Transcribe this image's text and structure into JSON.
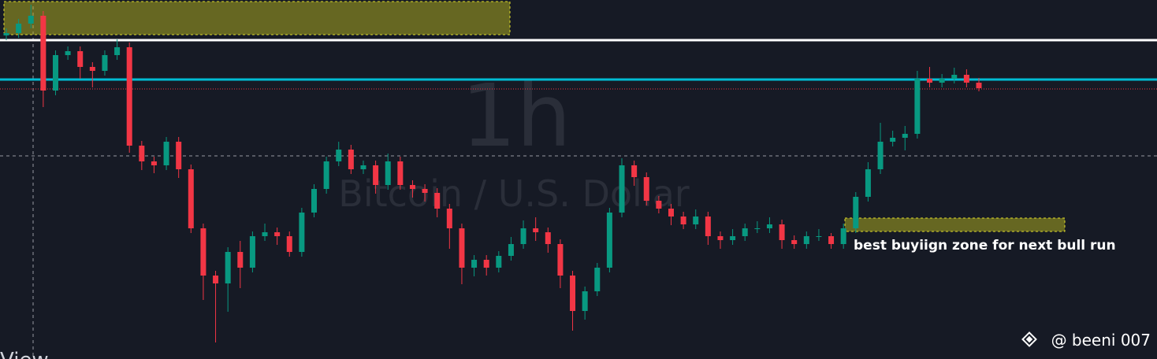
{
  "chart_data": {
    "type": "candlestick",
    "watermark_interval": "1h",
    "watermark_symbol": "Bitcoin / U.S. Dollar",
    "annotation": "best buyiign zone for next bull run",
    "author": "@ beeni 007",
    "corner_text": "View",
    "ylim": [
      0,
      456
    ],
    "up_color": "#089981",
    "down_color": "#f23645",
    "open": [
      411,
      414,
      426,
      436,
      341,
      386,
      391,
      371,
      366,
      386,
      396,
      271,
      251,
      246,
      276,
      241,
      166,
      106,
      96,
      136,
      116,
      156,
      161,
      156,
      136,
      186,
      216,
      251,
      266,
      241,
      246,
      221,
      251,
      221,
      216,
      211,
      191,
      166,
      116,
      126,
      116,
      131,
      146,
      166,
      161,
      146,
      106,
      61,
      86,
      116,
      186,
      246,
      231,
      201,
      191,
      181,
      171,
      181,
      156,
      151,
      156,
      166,
      166,
      171,
      151,
      146,
      156,
      156,
      146,
      166,
      206,
      241,
      276,
      281,
      286,
      356,
      351,
      356,
      361,
      351
    ],
    "high": [
      420,
      432,
      450,
      442,
      392,
      397,
      397,
      377,
      392,
      406,
      402,
      277,
      257,
      282,
      282,
      247,
      172,
      112,
      142,
      150,
      162,
      172,
      167,
      162,
      192,
      222,
      257,
      276,
      272,
      252,
      252,
      261,
      257,
      227,
      222,
      217,
      197,
      172,
      132,
      132,
      137,
      155,
      176,
      180,
      167,
      152,
      112,
      92,
      122,
      192,
      255,
      252,
      237,
      207,
      197,
      187,
      190,
      187,
      162,
      165,
      172,
      175,
      180,
      177,
      157,
      162,
      165,
      160,
      172,
      212,
      250,
      300,
      290,
      296,
      366,
      371,
      362,
      370,
      368,
      357
    ],
    "low": [
      405,
      408,
      420,
      320,
      335,
      380,
      356,
      345,
      360,
      380,
      262,
      240,
      236,
      240,
      230,
      160,
      75,
      21,
      60,
      90,
      110,
      150,
      145,
      130,
      130,
      180,
      210,
      245,
      235,
      235,
      210,
      215,
      215,
      205,
      200,
      180,
      140,
      95,
      105,
      106,
      110,
      125,
      140,
      150,
      135,
      90,
      36,
      50,
      80,
      110,
      180,
      220,
      195,
      185,
      170,
      165,
      165,
      145,
      140,
      145,
      150,
      160,
      160,
      140,
      140,
      140,
      150,
      140,
      140,
      160,
      200,
      235,
      270,
      265,
      280,
      345,
      345,
      350,
      345,
      340
    ],
    "close": [
      414,
      426,
      436,
      341,
      386,
      391,
      371,
      366,
      386,
      396,
      271,
      251,
      246,
      276,
      241,
      166,
      106,
      96,
      136,
      116,
      156,
      161,
      156,
      136,
      186,
      216,
      251,
      266,
      241,
      246,
      221,
      251,
      221,
      216,
      211,
      191,
      166,
      116,
      126,
      116,
      131,
      146,
      166,
      161,
      146,
      106,
      61,
      86,
      116,
      186,
      246,
      231,
      201,
      191,
      181,
      171,
      181,
      156,
      151,
      156,
      166,
      166,
      171,
      151,
      146,
      156,
      156,
      146,
      166,
      206,
      241,
      276,
      281,
      286,
      356,
      351,
      356,
      361,
      351,
      344
    ],
    "levels": [
      {
        "value": 405,
        "color": "#ffffff",
        "style": "solid"
      },
      {
        "value": 355,
        "color": "#00bcd4",
        "style": "solid"
      },
      {
        "value": 343,
        "color": "#f23645",
        "style": "dotted"
      },
      {
        "value": 258,
        "color": "#9598a1",
        "style": "dashed"
      }
    ],
    "zones": [
      {
        "low": 412,
        "high": 454,
        "color": "#b5b31f"
      },
      {
        "low": 162,
        "high": 179,
        "color": "#b5b31f"
      }
    ]
  }
}
